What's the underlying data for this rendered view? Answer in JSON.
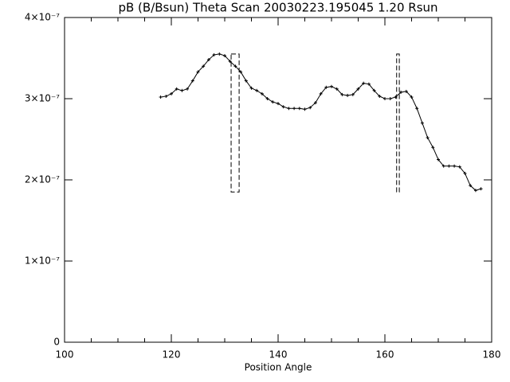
{
  "chart_data": {
    "type": "line",
    "title": "pB (B/Bsun) Theta Scan 20030223.195045 1.20 Rsun",
    "x_label": "Position Angle",
    "x": [
      118,
      119,
      120,
      121,
      122,
      123,
      124,
      125,
      126,
      127,
      128,
      129,
      130,
      131,
      132,
      133,
      134,
      135,
      136,
      137,
      138,
      139,
      140,
      141,
      142,
      143,
      144,
      145,
      146,
      147,
      148,
      149,
      150,
      151,
      152,
      153,
      154,
      155,
      156,
      157,
      158,
      159,
      160,
      161,
      162,
      163,
      164,
      165,
      166,
      167,
      168,
      169,
      170,
      171,
      172,
      173,
      174,
      175,
      176,
      177,
      178
    ],
    "values": [
      3.02e-07,
      3.03e-07,
      3.06e-07,
      3.12e-07,
      3.1e-07,
      3.12e-07,
      3.22e-07,
      3.33e-07,
      3.4e-07,
      3.48e-07,
      3.54e-07,
      3.55e-07,
      3.53e-07,
      3.46e-07,
      3.4e-07,
      3.33e-07,
      3.22e-07,
      3.13e-07,
      3.1e-07,
      3.06e-07,
      3e-07,
      2.96e-07,
      2.94e-07,
      2.9e-07,
      2.88e-07,
      2.88e-07,
      2.88e-07,
      2.87e-07,
      2.89e-07,
      2.95e-07,
      3.06e-07,
      3.14e-07,
      3.15e-07,
      3.12e-07,
      3.05e-07,
      3.04e-07,
      3.05e-07,
      3.12e-07,
      3.19e-07,
      3.18e-07,
      3.1e-07,
      3.03e-07,
      3e-07,
      3e-07,
      3.02e-07,
      3.08e-07,
      3.09e-07,
      3.02e-07,
      2.88e-07,
      2.7e-07,
      2.52e-07,
      2.4e-07,
      2.25e-07,
      2.17e-07,
      2.17e-07,
      2.17e-07,
      2.16e-07,
      2.08e-07,
      1.93e-07,
      1.87e-07,
      1.89e-07
    ],
    "color": "#000000",
    "regions": [
      {
        "x": [
          131.2,
          132.7
        ],
        "y": [
          1.85e-07,
          3.55e-07
        ]
      },
      {
        "x": [
          162.2,
          162.7
        ],
        "y": [
          1.85e-07,
          3.55e-07
        ]
      }
    ],
    "xlim": [
      100,
      180
    ],
    "xticks": [
      100,
      120,
      140,
      160,
      180
    ],
    "xminorticks": [
      105,
      110,
      115,
      125,
      130,
      135,
      145,
      150,
      155,
      165,
      170,
      175
    ],
    "ylim": [
      0,
      4e-07
    ],
    "yticks": [
      0,
      {
        "value": 1e-07,
        "label": "1×10⁻⁷"
      },
      {
        "value": 2e-07,
        "label": "2×10⁻⁷"
      },
      {
        "value": 3e-07,
        "label": "3×10⁻⁷"
      },
      {
        "value": 4e-07,
        "label": "4×10⁻⁷"
      }
    ]
  }
}
